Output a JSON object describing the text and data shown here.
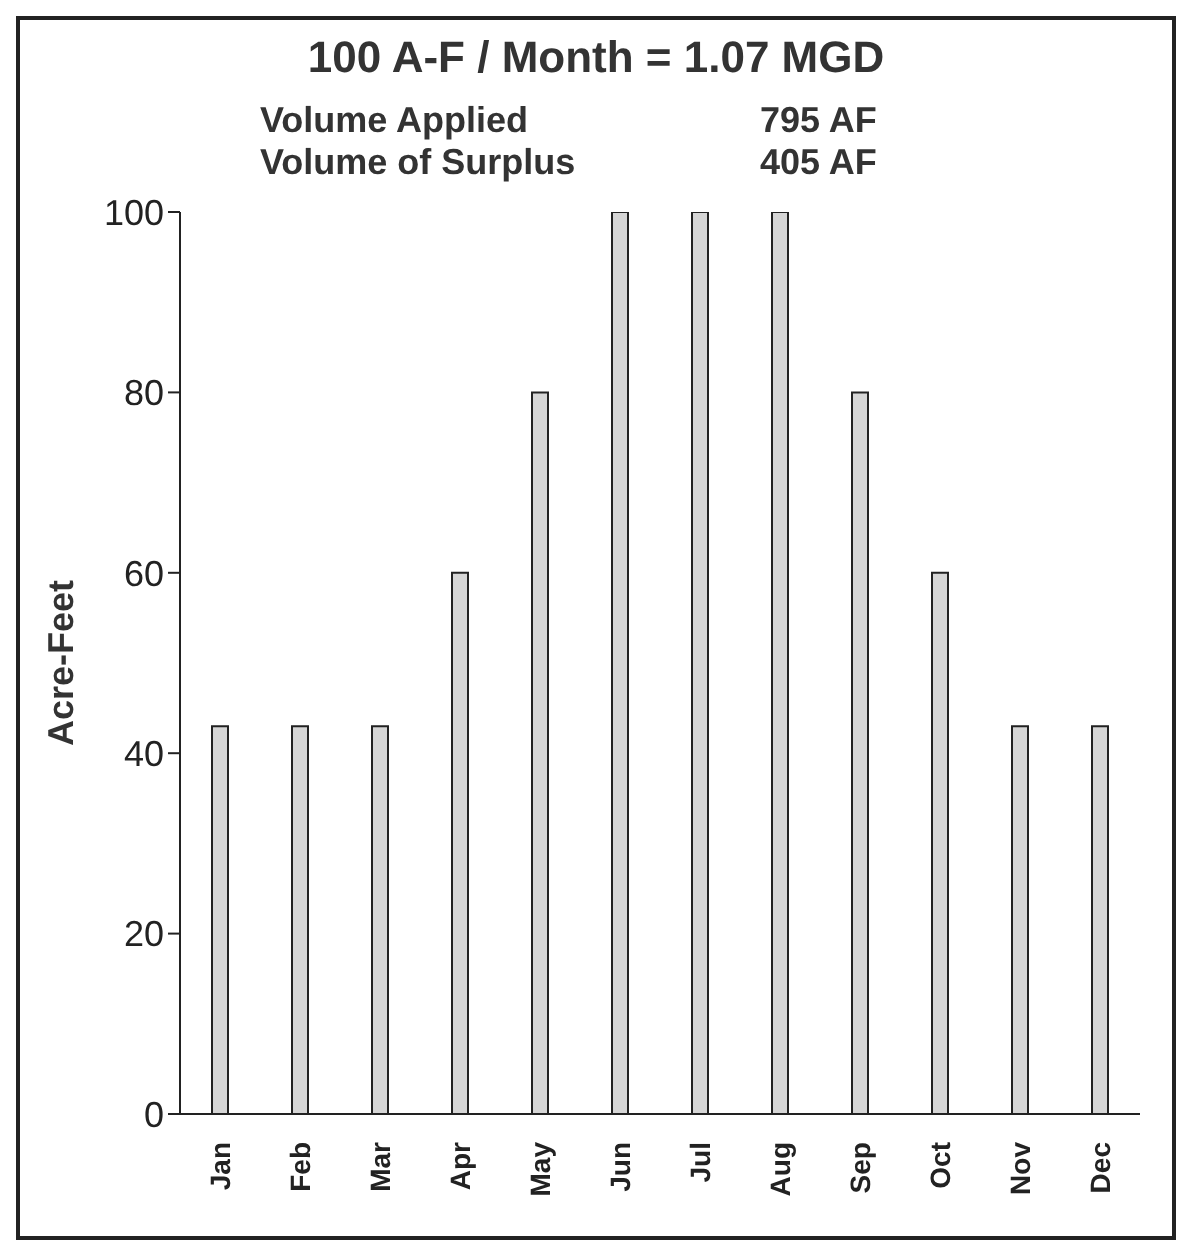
{
  "chart_data": {
    "type": "bar",
    "title": "100 A-F / Month = 1.07 MGD",
    "annotations": [
      "Volume Applied",
      "795 AF",
      "Volume of Surplus",
      "405 AF"
    ],
    "ylabel": "Acre-Feet",
    "categories": [
      "Jan",
      "Feb",
      "Mar",
      "Apr",
      "May",
      "Jun",
      "Jul",
      "Aug",
      "Sep",
      "Oct",
      "Nov",
      "Dec"
    ],
    "values": [
      43,
      43,
      43,
      60,
      80,
      100,
      100,
      100,
      80,
      60,
      43,
      43
    ],
    "color": "#d6d6d6",
    "ylim": [
      0,
      100
    ],
    "yticks": [
      0,
      20,
      40,
      60,
      80,
      100
    ],
    "grid": false,
    "legend": false
  }
}
